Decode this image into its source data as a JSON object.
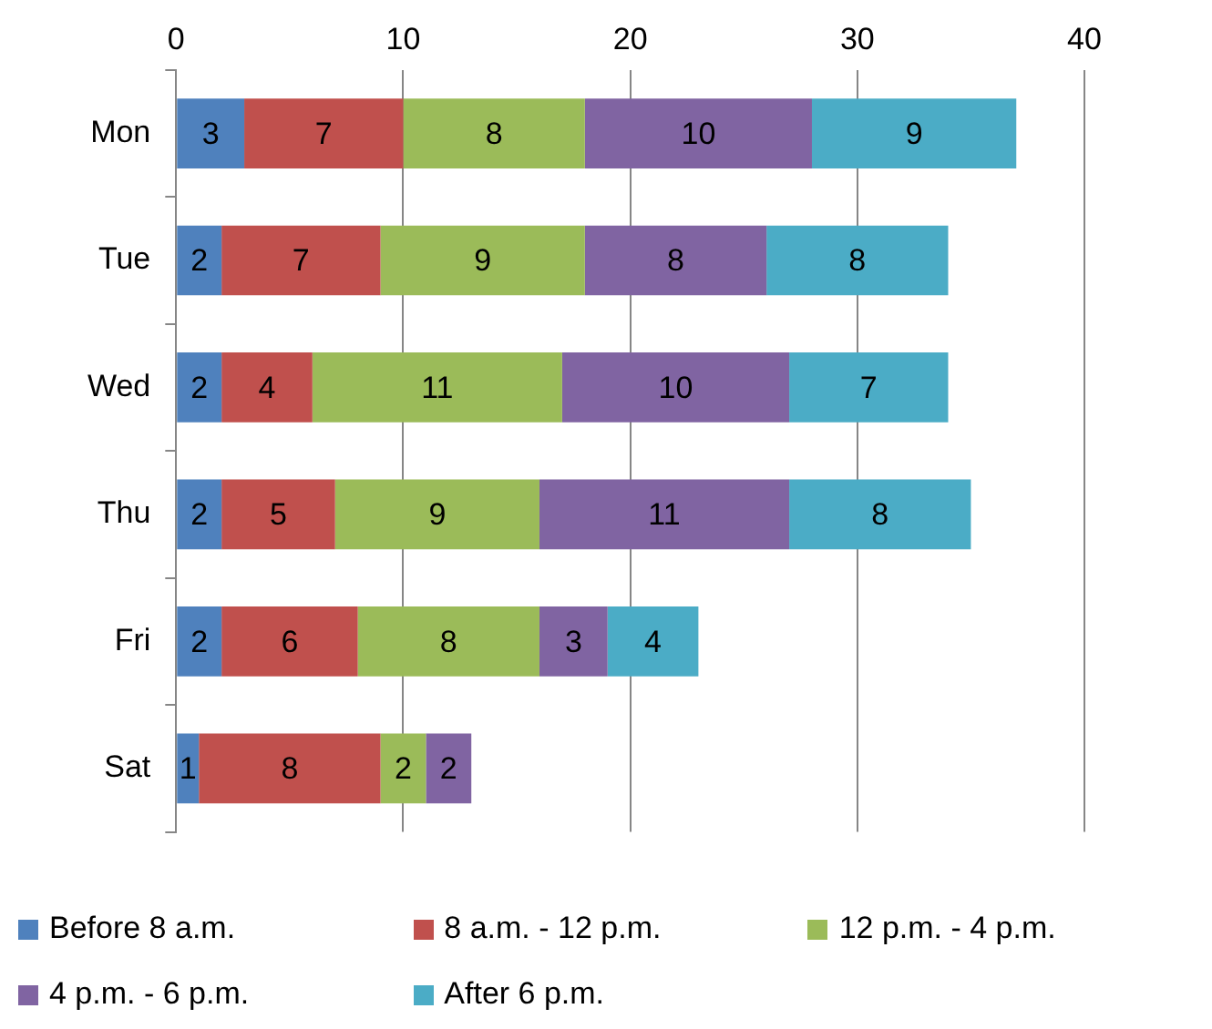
{
  "chart_data": {
    "type": "bar",
    "orientation": "horizontal",
    "stacked": true,
    "categories": [
      "Mon",
      "Tue",
      "Wed",
      "Thu",
      "Fri",
      "Sat"
    ],
    "series": [
      {
        "name": "Before 8 a.m.",
        "color": "#4f81bd",
        "values": [
          3,
          2,
          2,
          2,
          2,
          1
        ]
      },
      {
        "name": "8 a.m. - 12 p.m.",
        "color": "#c0504d",
        "values": [
          7,
          7,
          4,
          5,
          6,
          8
        ]
      },
      {
        "name": "12 p.m. - 4 p.m.",
        "color": "#9bbb59",
        "values": [
          8,
          9,
          11,
          9,
          8,
          2
        ]
      },
      {
        "name": "4 p.m. - 6 p.m.",
        "color": "#8064a2",
        "values": [
          10,
          8,
          10,
          11,
          3,
          2
        ]
      },
      {
        "name": "After 6 p.m.",
        "color": "#4bacc6",
        "values": [
          9,
          8,
          7,
          8,
          4,
          null
        ]
      }
    ],
    "xlim": [
      0,
      40
    ],
    "xticks": [
      0,
      10,
      20,
      30,
      40
    ],
    "grid": "x",
    "legend": "bottom",
    "data_labels": true
  }
}
